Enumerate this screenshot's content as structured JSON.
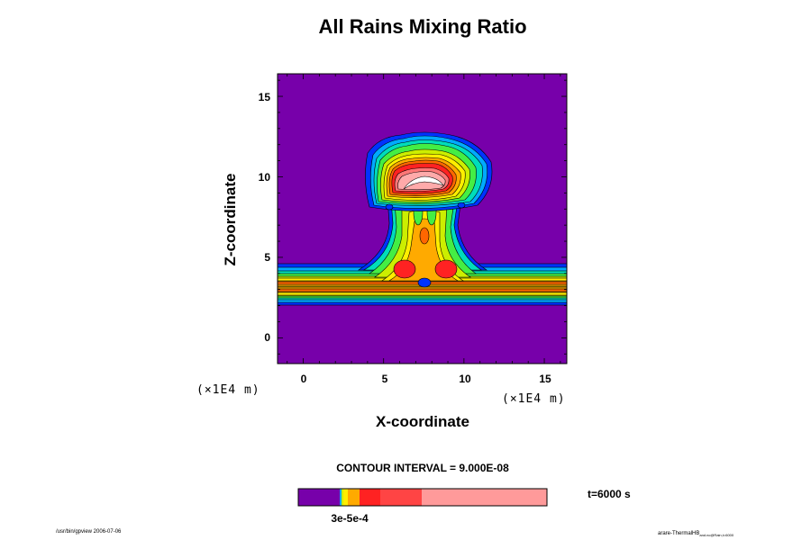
{
  "chart_data": {
    "type": "heatmap",
    "title": "All Rains Mixing Ratio",
    "xlabel": "X-coordinate",
    "ylabel": "Z-coordinate",
    "x_unit": "(×1E4 m)",
    "y_unit": "(×1E4 m)",
    "xlim": [
      -1.6,
      16.4
    ],
    "ylim": [
      -1.6,
      16.4
    ],
    "xticks": [
      "0",
      "5",
      "10",
      "15"
    ],
    "yticks": [
      "0",
      "5",
      "10",
      "15"
    ],
    "contour_interval": "CONTOUR INTERVAL = 9.000E-08",
    "time_label": "t=6000 s",
    "colorbar_label": "3e-5e-4",
    "colors": [
      "#7700aa",
      "#0033ff",
      "#00aaff",
      "#00ddbb",
      "#44ee44",
      "#ccee00",
      "#ffee00",
      "#ffaa00",
      "#ff6600",
      "#ff2222",
      "#ff7777",
      "#ffaaaa",
      "#ffffff"
    ]
  },
  "footer": {
    "left": "/usr/bin/gpview 2006-07-06",
    "right_main": "arare-ThermalHB",
    "right_sub": "and.nc@Rain,t=6000"
  }
}
